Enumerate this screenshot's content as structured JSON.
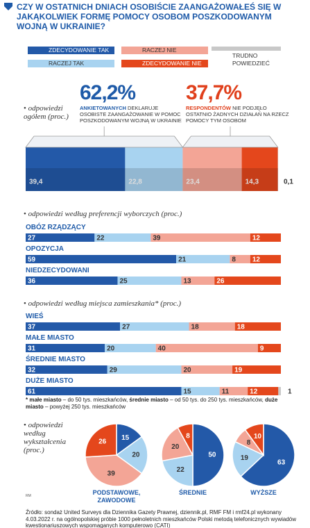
{
  "title": "CZY W OSTATNICH DNIACH OSOBIŚCIE ZAANGAŻOWAŁEŚ SIĘ W JAKĄKOLWIEK FORMĘ POMOCY OSOBOM POSZKODOWANYM WOJNĄ W UKRAINIE?",
  "chart_data": [
    {
      "type": "stacked-bar",
      "subtitle": "odpowiedzi ogółem (proc.)",
      "categories": [
        null
      ],
      "series": [
        {
          "name": "ZDECYDOWANIE TAK",
          "color": "#2359a8",
          "values": [
            39.4
          ],
          "value_labels": [
            "39,4"
          ]
        },
        {
          "name": "RACZEJ TAK",
          "color": "#a8d3f0",
          "values": [
            22.8
          ],
          "value_labels": [
            "22,8"
          ]
        },
        {
          "name": "RACZEJ NIE",
          "color": "#f3a596",
          "values": [
            23.4
          ],
          "value_labels": [
            "23,4"
          ]
        },
        {
          "name": "ZDECYDOWANIE NIE",
          "color": "#e4471c",
          "values": [
            14.3
          ],
          "value_labels": [
            "14,3"
          ]
        },
        {
          "name": "TRUDNO POWIEDZIEĆ",
          "color": "#c8c8c8",
          "values": [
            0.1
          ],
          "value_labels": [
            "0,1"
          ]
        }
      ],
      "annotations": [
        {
          "value": 62.2,
          "label": "62,2%",
          "bold": "ANKIETOWANYCH",
          "text": "DEKLARUJE OSOBISTE ZAANGAŻOWANIE W POMOC POSZKODOWANYM WOJNĄ W UKRAINIE",
          "color": "#1e5aa8"
        },
        {
          "value": 37.7,
          "label": "37,7%",
          "bold": "RESPONDENTÓW",
          "text": "NIE PODJĘŁO OSTATNIO ŻADNYCH DZIAŁAŃ NA RZECZ POMOCY TYM OSOBOM",
          "color": "#e0401c"
        }
      ]
    },
    {
      "type": "stacked-bar",
      "subtitle": "odpowiedzi według preferencji wyborczych (proc.)",
      "categories": [
        "OBÓZ RZĄDZĄCY",
        "OPOZYCJA",
        "NIEDZECYDOWANI"
      ],
      "series": [
        {
          "color": "#2359a8",
          "values": [
            27,
            59,
            36
          ]
        },
        {
          "color": "#a8d3f0",
          "values": [
            22,
            21,
            25
          ]
        },
        {
          "color": "#f3a596",
          "values": [
            39,
            8,
            13
          ]
        },
        {
          "color": "#e4471c",
          "values": [
            12,
            12,
            26
          ]
        }
      ]
    },
    {
      "type": "stacked-bar",
      "subtitle": "odpowiedzi według miejsca zamieszkania* (proc.)",
      "categories": [
        "WIEŚ",
        "MAŁE MIASTO",
        "ŚREDNIE  MIASTO",
        "DUŻE MIASTO"
      ],
      "series": [
        {
          "color": "#2359a8",
          "values": [
            37,
            31,
            32,
            61
          ]
        },
        {
          "color": "#a8d3f0",
          "values": [
            27,
            20,
            29,
            15
          ]
        },
        {
          "color": "#f3a596",
          "values": [
            18,
            40,
            20,
            11
          ]
        },
        {
          "color": "#e4471c",
          "values": [
            18,
            9,
            19,
            12
          ]
        },
        {
          "color": "#c8c8c8",
          "values": [
            null,
            null,
            null,
            1
          ]
        }
      ],
      "footnote": [
        {
          "b": true,
          "t": "* małe miasto"
        },
        {
          "b": false,
          "t": " – do 50 tys. mieszkańców, "
        },
        {
          "b": true,
          "t": "średnie miasto"
        },
        {
          "b": false,
          "t": " – od 50 tys. do 250 tys. mieszkańców, "
        },
        {
          "b": true,
          "t": "duże miasto"
        },
        {
          "b": false,
          "t": " – powyżej 250 tys. mieszkańców"
        }
      ]
    },
    {
      "type": "pie",
      "subtitle": "odpowiedzi według wykształcenia (proc.)",
      "categories": [
        "PODSTAWOWE, ZAWODOWE",
        "ŚREDNIE",
        "WYŻSZE"
      ],
      "series": [
        {
          "color": "#2359a8",
          "values": [
            15,
            50,
            63
          ]
        },
        {
          "color": "#a8d3f0",
          "values": [
            20,
            22,
            19
          ]
        },
        {
          "color": "#f3a596",
          "values": [
            39,
            20,
            8
          ]
        },
        {
          "color": "#e4471c",
          "values": [
            26,
            8,
            10
          ]
        }
      ]
    }
  ],
  "credit": "RM",
  "source": "Źródło: sondaż United Surveys dla Dziennika Gazety Prawnej, dziennik.pl, RMF FM i rmf24.pl wykonany 4.03.2022 r. na ogólnopolskiej próbie 1000 pełnoletnich mieszkańców Polski metodą telefonicznych wywiadów kwestionariuszowych wspomaganych komputerowo (CATI)"
}
